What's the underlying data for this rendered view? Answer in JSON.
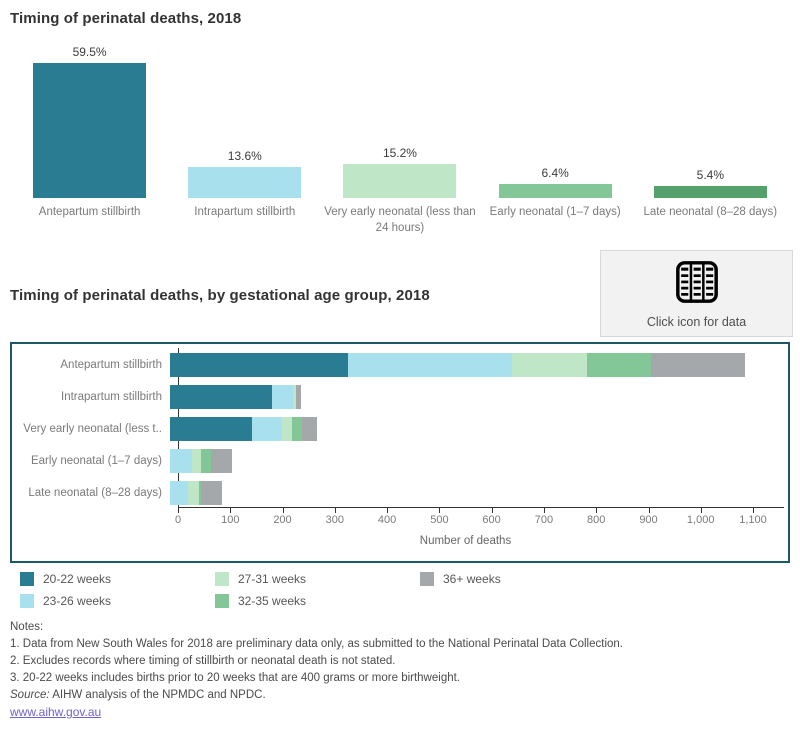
{
  "accent_colors": {
    "teal": "#2a7c92",
    "light_blue": "#a9e0ee",
    "light_green": "#bfe6c6",
    "medium_green": "#83c697",
    "dark_green": "#55a06d",
    "gray": "#a5a8ab",
    "frame_border": "#1d5867",
    "link": "#6e62cc"
  },
  "data_button": {
    "label": "Click icon for data",
    "icon": "table-icon"
  },
  "chart_data": [
    {
      "type": "bar",
      "title": "Timing of perinatal deaths, 2018",
      "categories": [
        "Antepartum stillbirth",
        "Intrapartum stillbirth",
        "Very early neonatal (less than 24 hours)",
        "Early neonatal (1–7 days)",
        "Late neonatal (8–28 days)"
      ],
      "values": [
        59.5,
        13.6,
        15.2,
        6.4,
        5.4
      ],
      "value_labels": [
        "59.5%",
        "13.6%",
        "15.2%",
        "6.4%",
        "5.4%"
      ],
      "unit": "%",
      "ylim": [
        0,
        65
      ],
      "grid": false,
      "bar_colors": [
        "#2a7c92",
        "#a9e0ee",
        "#bfe6c6",
        "#83c697",
        "#55a06d"
      ]
    },
    {
      "type": "bar",
      "orientation": "horizontal-stacked",
      "title": "Timing of perinatal deaths, by gestational age group, 2018",
      "categories": [
        "Antepartum stillbirth",
        "Intrapartum stillbirth",
        "Very early neonatal (less t..",
        "Early neonatal (1–7 days)",
        "Late neonatal (8–28 days)"
      ],
      "series": [
        {
          "name": "20-22 weeks",
          "color": "#2a7c92",
          "values": [
            340,
            195,
            156,
            0,
            0
          ]
        },
        {
          "name": "23-26 weeks",
          "color": "#a9e0ee",
          "values": [
            315,
            41,
            58,
            42,
            34
          ]
        },
        {
          "name": "27-31 weeks",
          "color": "#bfe6c6",
          "values": [
            142,
            5,
            19,
            18,
            22
          ]
        },
        {
          "name": "32-35 weeks",
          "color": "#83c697",
          "values": [
            123,
            0,
            19,
            19,
            4
          ]
        },
        {
          "name": "36+ weeks",
          "color": "#a5a8ab",
          "values": [
            180,
            10,
            29,
            39,
            40
          ]
        }
      ],
      "totals": [
        1100,
        251,
        281,
        118,
        100
      ],
      "xlabel": "Number of deaths",
      "xlim": [
        0,
        1100
      ],
      "x_ticks": [
        "0",
        "100",
        "200",
        "300",
        "400",
        "500",
        "600",
        "700",
        "800",
        "900",
        "1,000",
        "1,100"
      ],
      "grid": false,
      "legend_position": "below"
    }
  ],
  "legend": {
    "columns": [
      [
        {
          "label": "20-22 weeks",
          "color": "#2a7c92"
        },
        {
          "label": "23-26 weeks",
          "color": "#a9e0ee"
        }
      ],
      [
        {
          "label": "27-31 weeks",
          "color": "#bfe6c6"
        },
        {
          "label": "32-35 weeks",
          "color": "#83c697"
        }
      ],
      [
        {
          "label": "36+ weeks",
          "color": "#a5a8ab"
        }
      ]
    ],
    "column_offsets": [
      0,
      195,
      400
    ]
  },
  "notes": {
    "heading": "Notes:",
    "items": [
      "1. Data from New South Wales for 2018 are preliminary data only, as submitted to the National Perinatal Data Collection.",
      "2. Excludes records where timing of stillbirth or neonatal death is not stated.",
      "3. 20-22 weeks includes births prior to 20 weeks that are 400 grams or more birthweight."
    ],
    "source_prefix": "Source:",
    "source_text": " AIHW analysis of the NPMDC and NPDC.",
    "link": "www.aihw.gov.au"
  }
}
